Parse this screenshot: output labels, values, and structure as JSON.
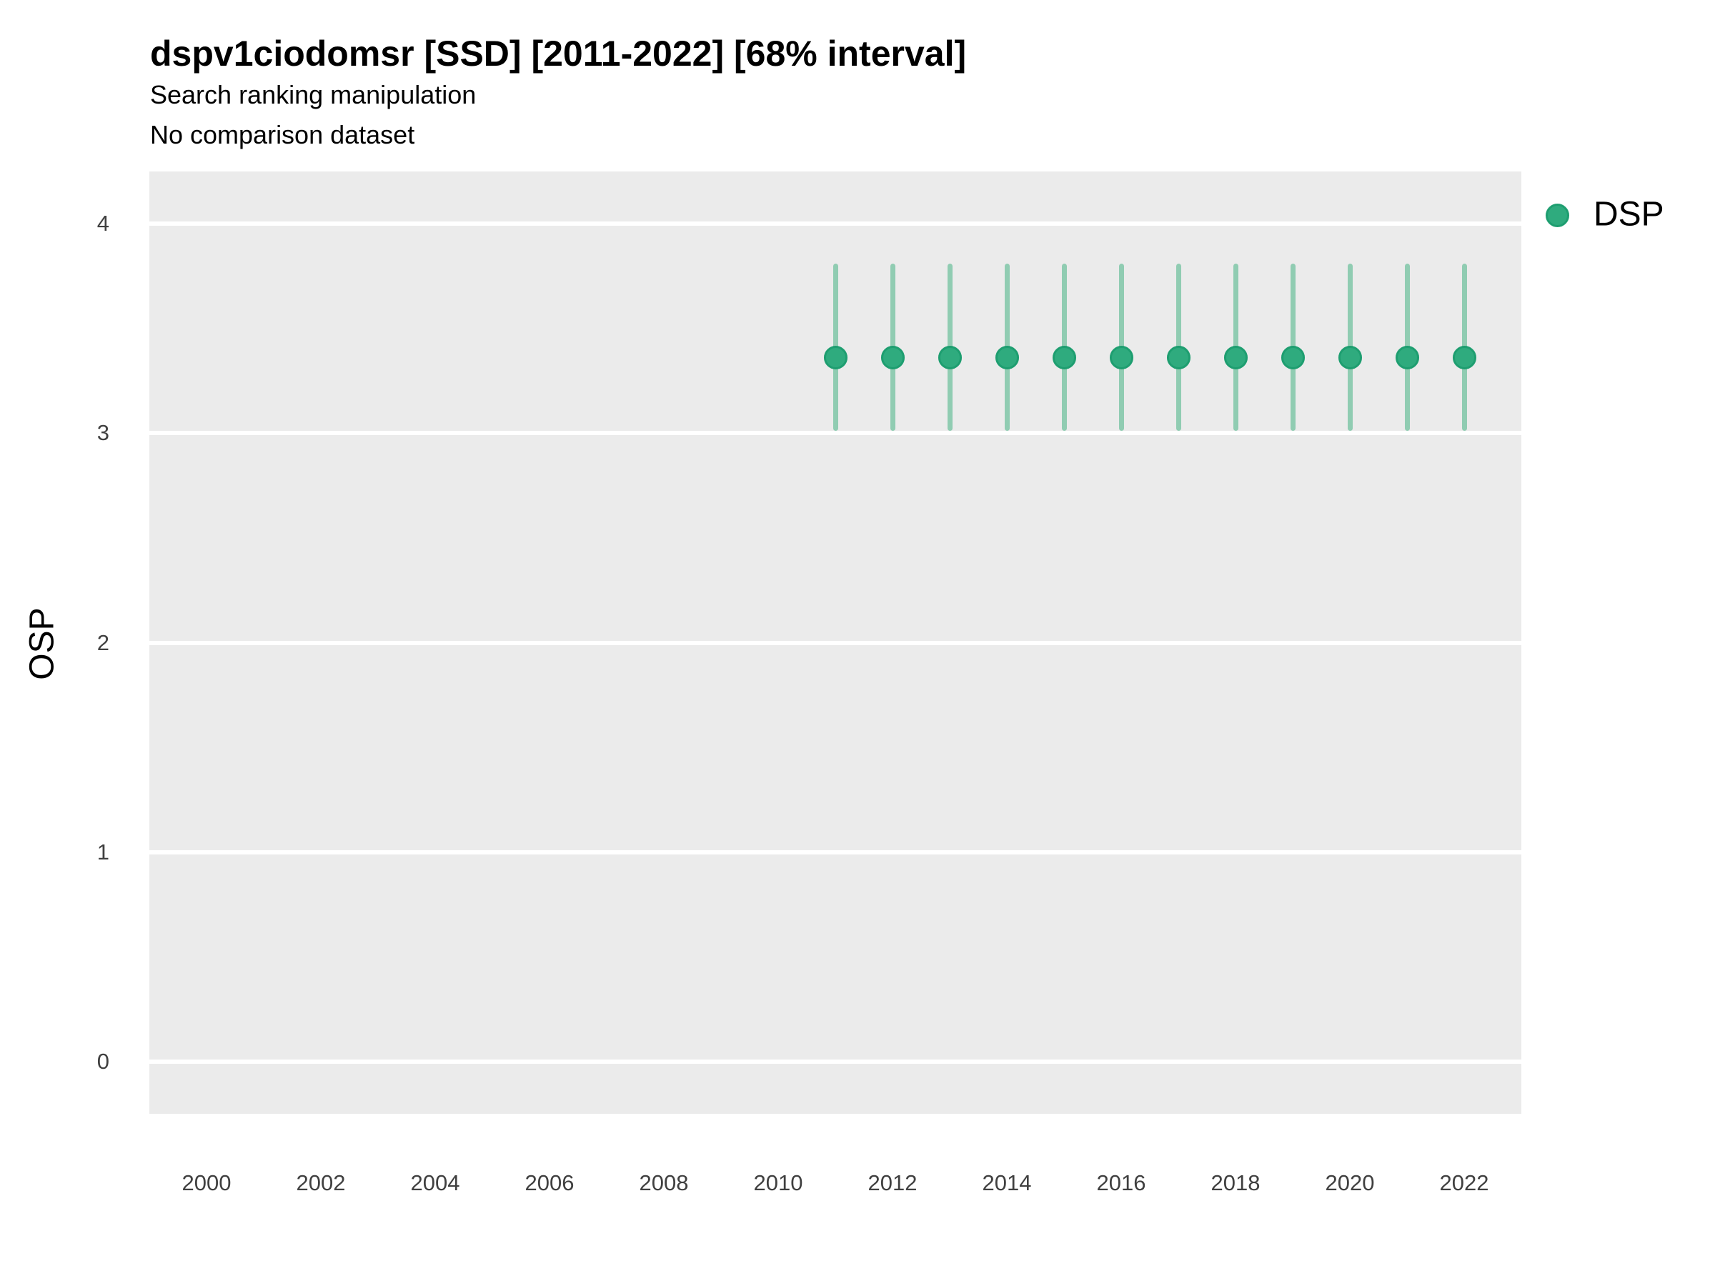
{
  "header": {
    "title": "dspv1ciodomsr [SSD] [2011-2022] [68% interval]",
    "subtitle_line1": "Search ranking manipulation",
    "subtitle_line2": "No comparison dataset"
  },
  "y_axis": {
    "label": "OSP"
  },
  "legend": {
    "items": [
      {
        "label": "DSP",
        "color": "#2FAB7E"
      }
    ]
  },
  "colors": {
    "panel_background": "#EBEBEB",
    "gridline": "#FFFFFF",
    "point_fill": "#2FAB7E",
    "point_stroke": "#1E9E70",
    "interval_line": "#90CCB2",
    "tick_text": "#404040"
  },
  "chart_data": {
    "type": "pointrange",
    "title": "dspv1ciodomsr [SSD] [2011-2022] [68% interval]",
    "subtitle": [
      "Search ranking manipulation",
      "No comparison dataset"
    ],
    "xlabel": "",
    "ylabel": "OSP",
    "xlim": [
      1999,
      2023
    ],
    "ylim": [
      -0.25,
      4.25
    ],
    "x_ticks": [
      2000,
      2002,
      2004,
      2006,
      2008,
      2010,
      2012,
      2014,
      2016,
      2018,
      2020,
      2022
    ],
    "y_ticks": [
      0,
      1,
      2,
      3,
      4
    ],
    "grid": "horizontal-major-only",
    "legend_position": "top-right",
    "interval_label": "68% interval",
    "series": [
      {
        "name": "DSP",
        "color": "#2FAB7E",
        "stroke": "#1E9E70",
        "interval_color": "#90CCB2",
        "points": [
          {
            "x": 2011,
            "y": 3.36,
            "lo": 3.01,
            "hi": 3.81
          },
          {
            "x": 2012,
            "y": 3.36,
            "lo": 3.01,
            "hi": 3.81
          },
          {
            "x": 2013,
            "y": 3.36,
            "lo": 3.01,
            "hi": 3.81
          },
          {
            "x": 2014,
            "y": 3.36,
            "lo": 3.01,
            "hi": 3.81
          },
          {
            "x": 2015,
            "y": 3.36,
            "lo": 3.01,
            "hi": 3.81
          },
          {
            "x": 2016,
            "y": 3.36,
            "lo": 3.01,
            "hi": 3.81
          },
          {
            "x": 2017,
            "y": 3.36,
            "lo": 3.01,
            "hi": 3.81
          },
          {
            "x": 2018,
            "y": 3.36,
            "lo": 3.01,
            "hi": 3.81
          },
          {
            "x": 2019,
            "y": 3.36,
            "lo": 3.01,
            "hi": 3.81
          },
          {
            "x": 2020,
            "y": 3.36,
            "lo": 3.01,
            "hi": 3.81
          },
          {
            "x": 2021,
            "y": 3.36,
            "lo": 3.01,
            "hi": 3.81
          },
          {
            "x": 2022,
            "y": 3.36,
            "lo": 3.01,
            "hi": 3.81
          }
        ]
      }
    ]
  }
}
